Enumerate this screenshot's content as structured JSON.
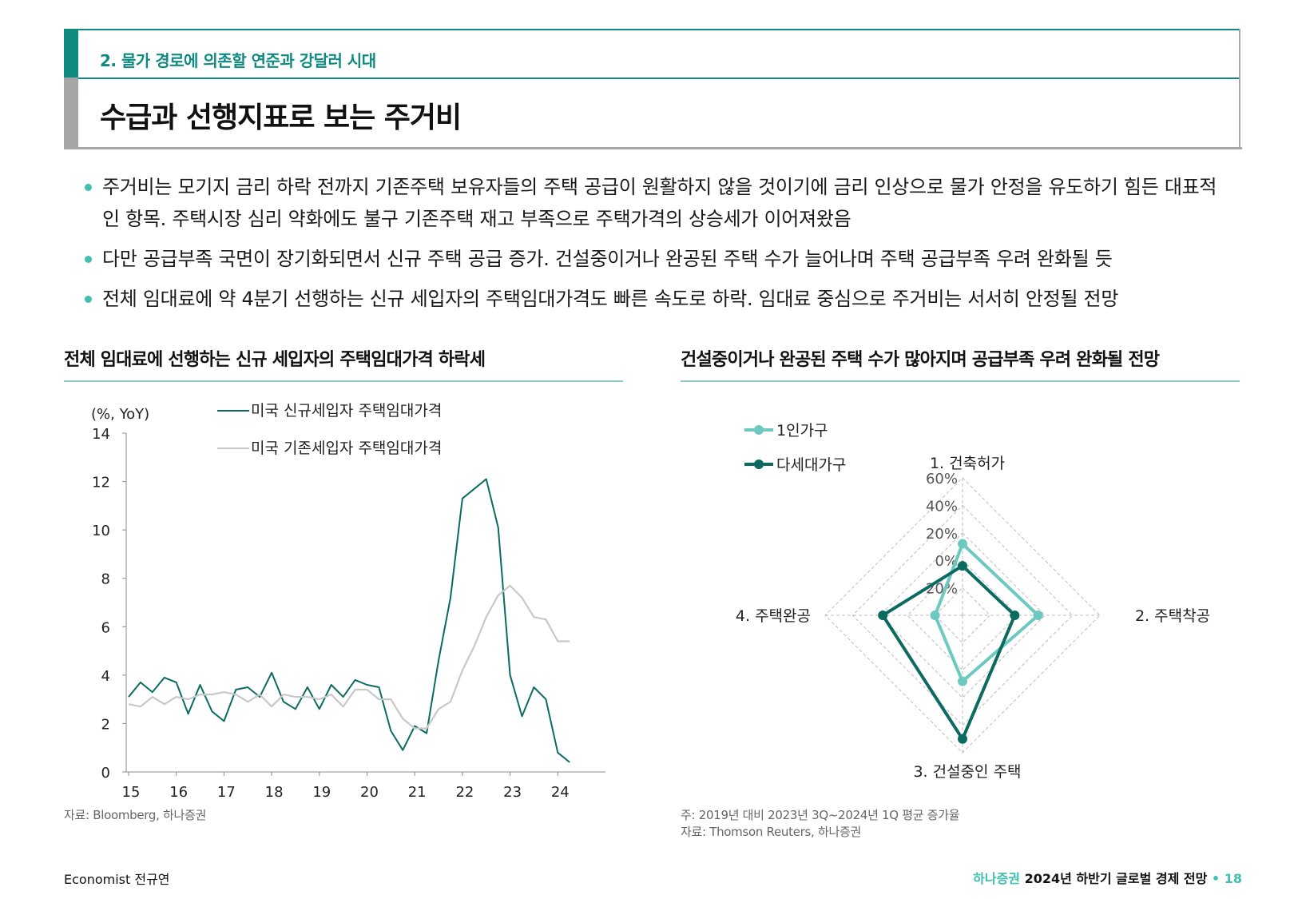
{
  "header": {
    "subtitle": "2. 물가 경로에 의존할 연준과 강달러 시대",
    "title": "수급과 선행지표로 보는 주거비"
  },
  "bullets": [
    "주거비는 모기지 금리 하락 전까지 기존주택 보유자들의 주택 공급이 원활하지 않을 것이기에 금리 인상으로 물가 안정을 유도하기 힘든 대표적인 항목. 주택시장 심리 약화에도 불구 기존주택 재고 부족으로 주택가격의 상승세가 이어져왔음",
    "다만 공급부족 국면이 장기화되면서 신규 주택 공급 증가. 건설중이거나 완공된 주택 수가 늘어나며 주택 공급부족 우려 완화될 듯",
    "전체 임대료에 약 4분기 선행하는 신규 세입자의 주택임대가격도 빠른 속도로 하락. 임대료 중심으로 주거비는 서서히 안정될 전망"
  ],
  "left_chart": {
    "heading": "전체 임대료에 선행하는 신규 세입자의 주택임대가격 하락세",
    "source": "자료: Bloomberg, 하나증권"
  },
  "right_chart": {
    "heading": "건설중이거나 완공된 주택 수가 많아지며 공급부족 우려 완화될 전망",
    "note": "주: 2019년 대비 2023년 3Q~2024년 1Q 평균 증가율",
    "source": "자료: Thomson Reuters, 하나증권"
  },
  "footer": {
    "left": "Economist 전규연",
    "brand": "하나증권",
    "report": "2024년 하반기 글로벌 경제 전망",
    "sep": "•",
    "page": "18"
  },
  "colors": {
    "teal": "#0e8a80",
    "dark_teal": "#0b6b61",
    "light_teal": "#6cc9bf",
    "grey": "#c8c8c8"
  },
  "chart_data": [
    {
      "type": "line",
      "unit_label": "(%, YoY)",
      "x_ticks": [
        "15",
        "16",
        "17",
        "18",
        "19",
        "20",
        "21",
        "22",
        "23",
        "24"
      ],
      "ylim": [
        0,
        14
      ],
      "y_ticks": [
        "0",
        "2",
        "4",
        "6",
        "8",
        "10",
        "12",
        "14"
      ],
      "x_start": 15.0,
      "x_step": 0.25,
      "series": [
        {
          "name": "미국 신규세입자 주택임대가격",
          "color": "#0b6b61",
          "values": [
            3.1,
            3.7,
            3.3,
            3.9,
            3.7,
            2.4,
            3.6,
            2.5,
            2.1,
            3.4,
            3.5,
            3.1,
            4.1,
            2.9,
            2.6,
            3.5,
            2.6,
            3.6,
            3.1,
            3.8,
            3.6,
            3.5,
            1.7,
            0.9,
            1.9,
            1.6,
            4.6,
            7.2,
            11.3,
            11.7,
            12.1,
            10.1,
            4.0,
            2.3,
            3.5,
            3.0,
            0.8,
            0.4
          ]
        },
        {
          "name": "미국 기존세입자 주택임대가격",
          "color": "#c8c8c8",
          "values": [
            2.8,
            2.7,
            3.1,
            2.8,
            3.1,
            3.0,
            3.2,
            3.2,
            3.3,
            3.2,
            2.9,
            3.2,
            2.7,
            3.2,
            3.1,
            3.1,
            3.0,
            3.2,
            2.7,
            3.4,
            3.4,
            3.0,
            3.0,
            2.2,
            1.8,
            1.8,
            2.6,
            2.9,
            4.2,
            5.2,
            6.4,
            7.3,
            7.7,
            7.2,
            6.4,
            6.3,
            5.4,
            5.4
          ]
        }
      ]
    },
    {
      "type": "radar",
      "axes": [
        "1. 건축허가",
        "2. 주택착공",
        "3. 건설중인 주택",
        "4. 주택완공"
      ],
      "rlim": [
        -40,
        60
      ],
      "r_ticks": [
        "60%",
        "40%",
        "20%",
        "0%",
        "-20%"
      ],
      "series": [
        {
          "name": "1인가구",
          "color": "#6cc9bf",
          "values": [
            12,
            15,
            8,
            -20
          ]
        },
        {
          "name": "다세대가구",
          "color": "#0b6b61",
          "values": [
            -4,
            -2,
            50,
            18
          ]
        }
      ]
    }
  ]
}
